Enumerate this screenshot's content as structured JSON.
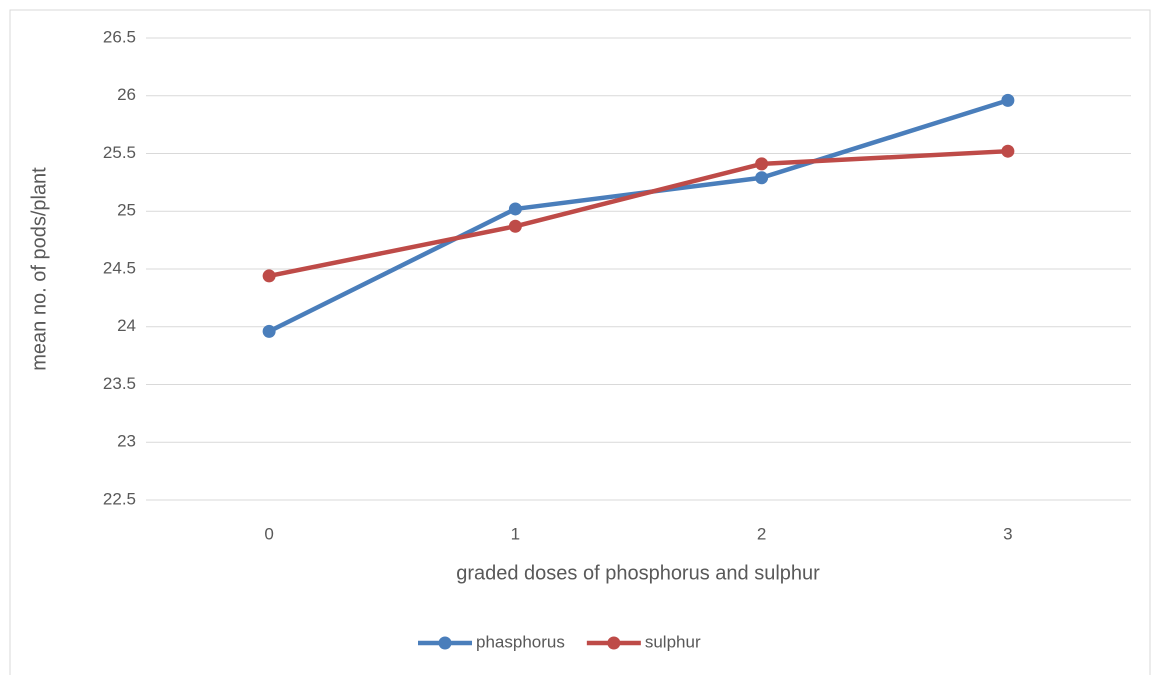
{
  "chart_data": {
    "type": "line",
    "categories": [
      "0",
      "1",
      "2",
      "3"
    ],
    "series": [
      {
        "name": "phasphorus",
        "color": "#4a7ebb",
        "values": [
          23.96,
          25.02,
          25.29,
          25.96
        ]
      },
      {
        "name": "sulphur",
        "color": "#be4b48",
        "values": [
          24.44,
          24.87,
          25.41,
          25.52
        ]
      }
    ],
    "xlabel": "graded doses of phosphorus and sulphur",
    "ylabel": "mean no. of pods/plant",
    "ylim": [
      22.5,
      26.5
    ],
    "yticks": [
      22.5,
      23,
      23.5,
      24,
      24.5,
      25,
      25.5,
      26,
      26.5
    ],
    "grid": true,
    "legend": "bottom"
  }
}
